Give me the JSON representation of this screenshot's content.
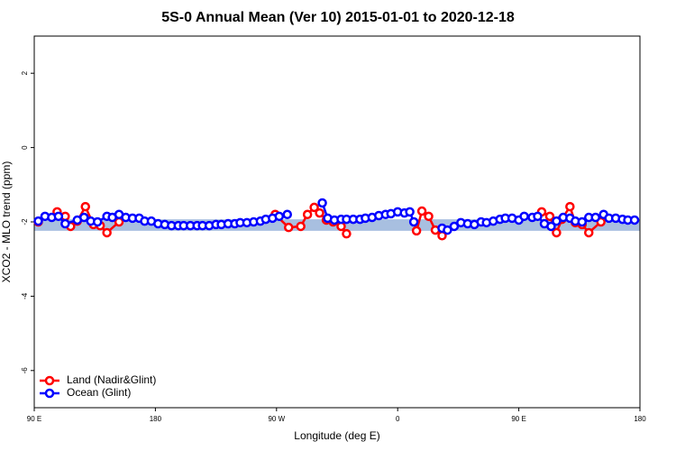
{
  "chart_data": {
    "type": "line",
    "title": "5S-0 Annual Mean (Ver 10)   2015-01-01 to 2020-12-18",
    "xlabel": "Longitude (deg E)",
    "ylabel": "XCO2 - MLO trend (ppm)",
    "xlim": [
      90,
      540
    ],
    "xticks": [
      {
        "value": 90,
        "label": "90 E"
      },
      180,
      {
        "value": 270,
        "label": "90 W"
      },
      {
        "value": 360,
        "label": "0"
      },
      {
        "value": 450,
        "label": "90 E"
      },
      {
        "value": 540,
        "label": "180"
      }
    ],
    "ylim": [
      -7,
      3
    ],
    "yticks": [
      -6,
      -4,
      -2,
      0,
      2
    ],
    "band": [
      -2.24,
      -1.93
    ],
    "band_color": "#a8bfe0",
    "legend": "bottom-left",
    "series": [
      {
        "name": "Land (Nadir&Glint)",
        "color": "#ff0000",
        "x": [
          93,
          107,
          113,
          117,
          122,
          128,
          134,
          139,
          144,
          153,
          null,
          269,
          279,
          288,
          293,
          298,
          302,
          307,
          312,
          318,
          322,
          null,
          374,
          378,
          383,
          388,
          393,
          null,
          467,
          473,
          478,
          482,
          488,
          492,
          497,
          502,
          511
        ],
        "values": [
          -2.0,
          -1.73,
          -1.85,
          -2.12,
          -1.98,
          -1.59,
          -2.07,
          -2.1,
          -2.29,
          -2.0,
          null,
          -1.8,
          -2.15,
          -2.12,
          -1.8,
          -1.61,
          -1.76,
          -1.95,
          -2.0,
          -2.12,
          -2.32,
          null,
          -2.24,
          -1.71,
          -1.85,
          -2.22,
          -2.37,
          null,
          -1.73,
          -1.85,
          -2.29,
          -1.93,
          -1.59,
          -2.02,
          -2.07,
          -2.29,
          -2.0
        ]
      },
      {
        "name": "Ocean (Glint)",
        "color": "#0000ff",
        "x": [
          93,
          98,
          103,
          108,
          113,
          122,
          127,
          132,
          137,
          144,
          148,
          153,
          158,
          163,
          168,
          172,
          177,
          182,
          187,
          192,
          197,
          201,
          206,
          211,
          215,
          220,
          225,
          229,
          234,
          239,
          243,
          248,
          253,
          258,
          262,
          267,
          272,
          278,
          null,
          304,
          308,
          313,
          318,
          322,
          327,
          332,
          336,
          341,
          346,
          351,
          355,
          360,
          365,
          369,
          372,
          null,
          393,
          397,
          402,
          407,
          412,
          417,
          422,
          426,
          431,
          436,
          440,
          445,
          450,
          454,
          460,
          464,
          469,
          474,
          478,
          483,
          488,
          492,
          497,
          502,
          507,
          513,
          517,
          522,
          527,
          531,
          536
        ],
        "values": [
          -1.98,
          -1.85,
          -1.88,
          -1.85,
          -2.05,
          -1.95,
          -1.88,
          -1.98,
          -2.0,
          -1.85,
          -1.88,
          -1.8,
          -1.88,
          -1.9,
          -1.9,
          -1.98,
          -1.98,
          -2.05,
          -2.07,
          -2.1,
          -2.1,
          -2.1,
          -2.1,
          -2.1,
          -2.1,
          -2.1,
          -2.07,
          -2.07,
          -2.05,
          -2.05,
          -2.02,
          -2.02,
          -2.0,
          -1.98,
          -1.93,
          -1.9,
          -1.85,
          -1.8,
          null,
          -1.49,
          -1.9,
          -1.95,
          -1.93,
          -1.93,
          -1.93,
          -1.93,
          -1.9,
          -1.88,
          -1.83,
          -1.8,
          -1.78,
          -1.73,
          -1.76,
          -1.73,
          -2.0,
          null,
          -2.17,
          -2.22,
          -2.12,
          -2.02,
          -2.05,
          -2.07,
          -2.0,
          -2.02,
          -1.98,
          -1.93,
          -1.9,
          -1.9,
          -1.95,
          -1.85,
          -1.88,
          -1.85,
          -2.05,
          -2.12,
          -1.98,
          -1.88,
          -1.9,
          -1.98,
          -2.0,
          -1.88,
          -1.88,
          -1.8,
          -1.9,
          -1.9,
          -1.93,
          -1.95,
          -1.95
        ]
      }
    ]
  }
}
